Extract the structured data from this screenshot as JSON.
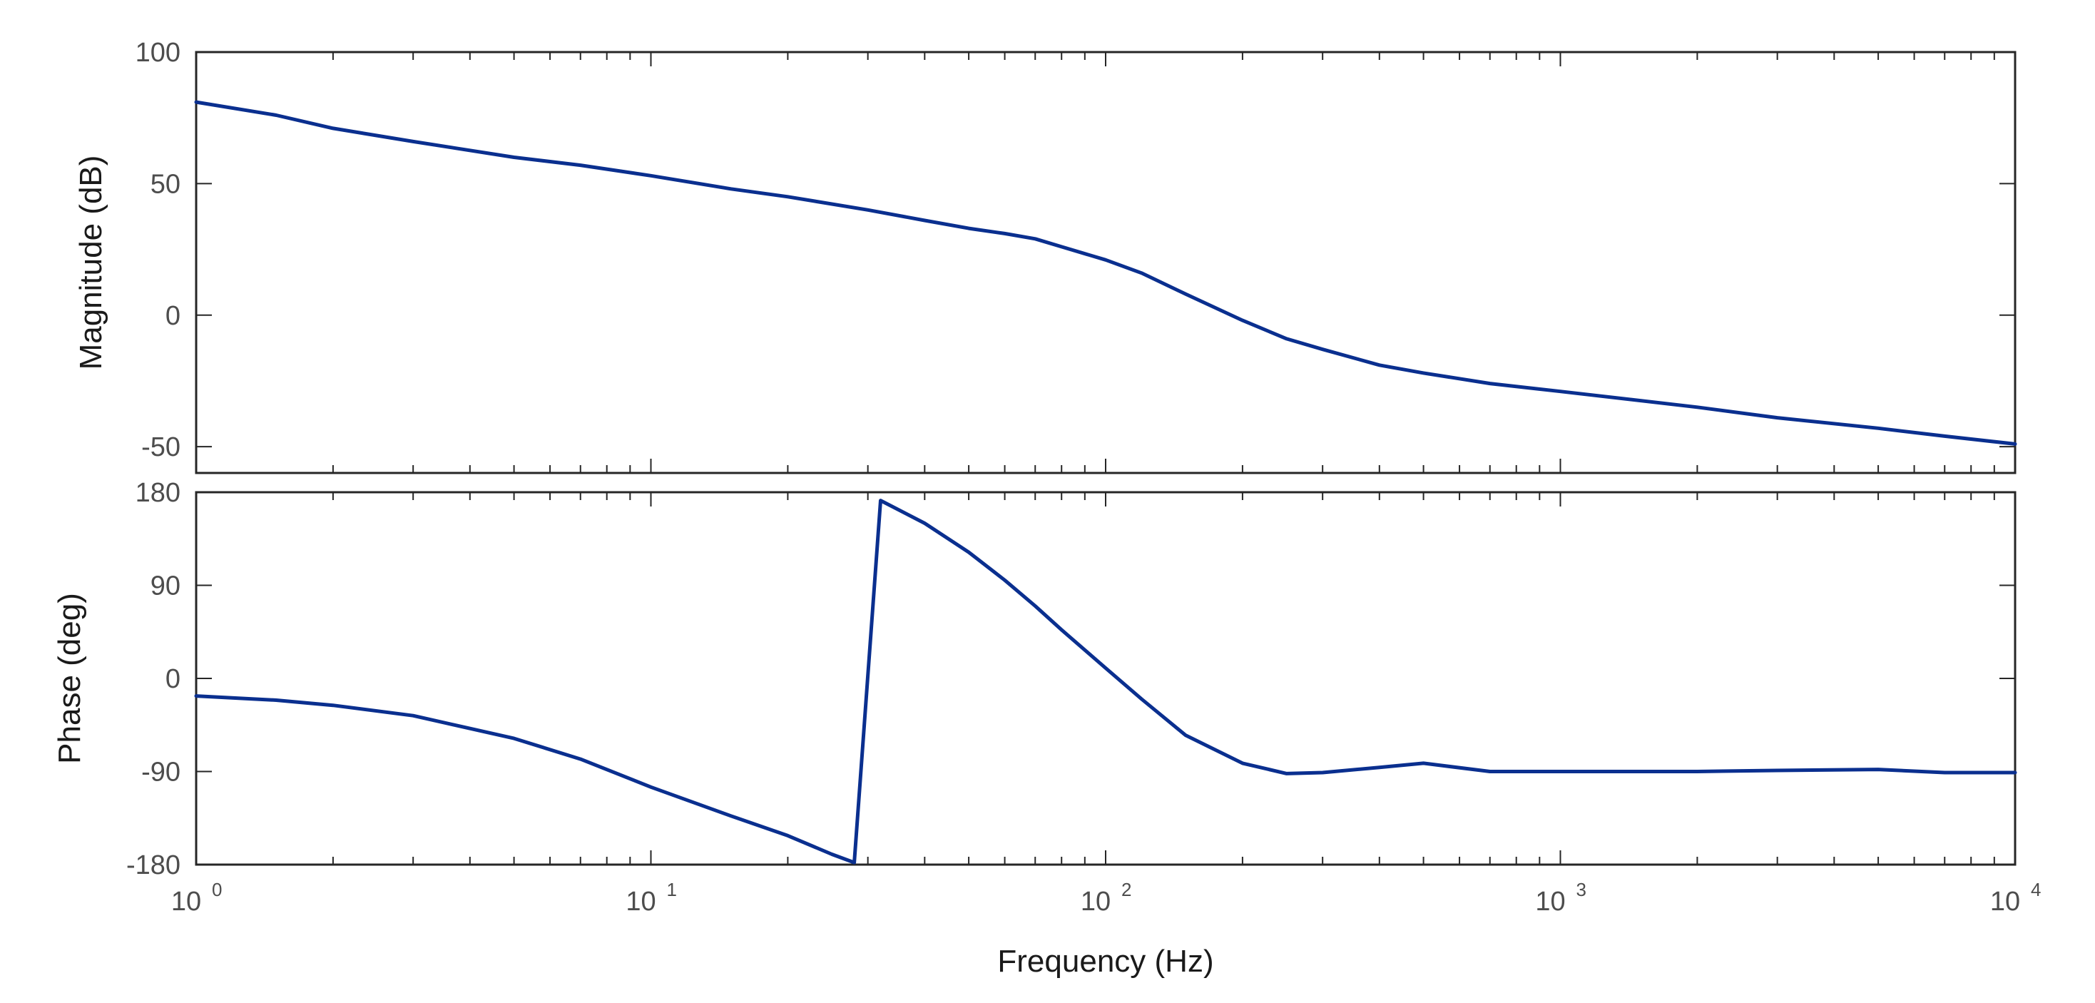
{
  "chart_data": [
    {
      "type": "line",
      "panel": "magnitude",
      "ylabel": "Magnitude (dB)",
      "xlabel": "",
      "xscale": "log",
      "xlim": [
        1,
        10000
      ],
      "ylim": [
        -60,
        100
      ],
      "yticks": [
        -50,
        0,
        50,
        100
      ],
      "ytick_labels": [
        "-50",
        "0",
        "50",
        "100"
      ],
      "grid": false,
      "series": [
        {
          "name": "magnitude",
          "color": "#0a2f8f",
          "x": [
            1,
            1.5,
            2,
            3,
            5,
            7,
            10,
            15,
            20,
            30,
            40,
            50,
            60,
            70,
            80,
            100,
            120,
            150,
            200,
            250,
            300,
            400,
            500,
            700,
            1000,
            2000,
            3000,
            5000,
            7000,
            10000
          ],
          "values": [
            81,
            76,
            71,
            66,
            60,
            57,
            53,
            48,
            45,
            40,
            36,
            33,
            31,
            29,
            26,
            21,
            16,
            8,
            -2,
            -9,
            -13,
            -19,
            -22,
            -26,
            -29,
            -35,
            -39,
            -43,
            -46,
            -49
          ]
        }
      ]
    },
    {
      "type": "line",
      "panel": "phase",
      "ylabel": "Phase (deg)",
      "xlabel": "Frequency  (Hz)",
      "xscale": "log",
      "xlim": [
        1,
        10000
      ],
      "ylim": [
        -180,
        180
      ],
      "yticks": [
        -180,
        -90,
        0,
        90,
        180
      ],
      "ytick_labels": [
        "-180",
        "-90",
        "0",
        "90",
        "180"
      ],
      "xtick_bases": [
        "10",
        "10",
        "10",
        "10",
        "10"
      ],
      "xtick_exponents": [
        "0",
        "1",
        "2",
        "3",
        "4"
      ],
      "grid": false,
      "series": [
        {
          "name": "phase",
          "color": "#0a2f8f",
          "x": [
            1,
            1.5,
            2,
            3,
            5,
            7,
            10,
            15,
            20,
            25,
            28,
            32,
            40,
            50,
            60,
            70,
            80,
            100,
            120,
            150,
            200,
            250,
            300,
            400,
            500,
            700,
            1000,
            2000,
            3000,
            5000,
            7000,
            10000
          ],
          "values": [
            -17,
            -21,
            -26,
            -36,
            -58,
            -78,
            -105,
            -133,
            -152,
            -170,
            -178,
            172,
            150,
            122,
            95,
            70,
            47,
            10,
            -20,
            -55,
            -82,
            -92,
            -91,
            -86,
            -82,
            -90,
            -90,
            -90,
            -89,
            -88,
            -91,
            -91
          ]
        }
      ]
    }
  ]
}
